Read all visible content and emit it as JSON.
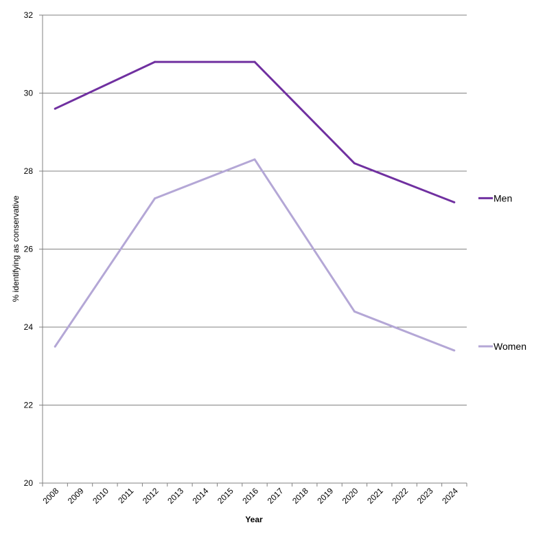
{
  "chart_data": {
    "type": "line",
    "xlabel": "Year",
    "ylabel": "% identifying as conservative",
    "x": [
      "2008",
      "2009",
      "2010",
      "2011",
      "2012",
      "2013",
      "2014",
      "2015",
      "2016",
      "2017",
      "2018",
      "2019",
      "2020",
      "2021",
      "2022",
      "2023",
      "2024"
    ],
    "ylim": [
      20,
      32
    ],
    "yticks": [
      20,
      22,
      24,
      26,
      28,
      30,
      32
    ],
    "grid": true,
    "legend_position": "right",
    "series": [
      {
        "name": "Men",
        "color": "#7030a0",
        "points": [
          {
            "x": "2008",
            "y": 29.6
          },
          {
            "x": "2012",
            "y": 30.8
          },
          {
            "x": "2016",
            "y": 30.8
          },
          {
            "x": "2020",
            "y": 28.2
          },
          {
            "x": "2024",
            "y": 27.2
          }
        ]
      },
      {
        "name": "Women",
        "color": "#b4a7d6",
        "points": [
          {
            "x": "2008",
            "y": 23.5
          },
          {
            "x": "2012",
            "y": 27.3
          },
          {
            "x": "2016",
            "y": 28.3
          },
          {
            "x": "2020",
            "y": 24.4
          },
          {
            "x": "2024",
            "y": 23.4
          }
        ]
      }
    ]
  }
}
